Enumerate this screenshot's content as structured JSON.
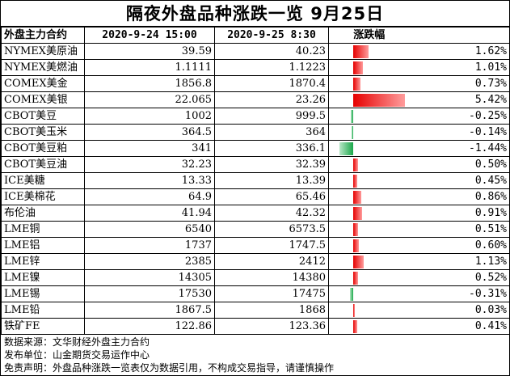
{
  "title": "隔夜外盘品种涨跌一览 9月25日",
  "chart_data": {
    "type": "table",
    "columns": [
      "外盘主力合约",
      "2020-9-24 15:00",
      "2020-9-25 8:30",
      "涨跌幅"
    ],
    "rows": [
      {
        "name": "NYMEX美原油",
        "prev": "39.59",
        "curr": "40.23",
        "change": 1.62,
        "change_text": "1.62%"
      },
      {
        "name": "NYMEX美燃油",
        "prev": "1.1111",
        "curr": "1.1223",
        "change": 1.01,
        "change_text": "1.01%"
      },
      {
        "name": "COMEX美金",
        "prev": "1856.8",
        "curr": "1870.4",
        "change": 0.73,
        "change_text": "0.73%"
      },
      {
        "name": "COMEX美银",
        "prev": "22.065",
        "curr": "23.26",
        "change": 5.42,
        "change_text": "5.42%"
      },
      {
        "name": "CBOT美豆",
        "prev": "1002",
        "curr": "999.5",
        "change": -0.25,
        "change_text": "-0.25%"
      },
      {
        "name": "CBOT美玉米",
        "prev": "364.5",
        "curr": "364",
        "change": -0.14,
        "change_text": "-0.14%"
      },
      {
        "name": "CBOT美豆粕",
        "prev": "341",
        "curr": "336.1",
        "change": -1.44,
        "change_text": "-1.44%"
      },
      {
        "name": "CBOT美豆油",
        "prev": "32.23",
        "curr": "32.39",
        "change": 0.5,
        "change_text": "0.50%"
      },
      {
        "name": "ICE美糖",
        "prev": "13.33",
        "curr": "13.39",
        "change": 0.45,
        "change_text": "0.45%"
      },
      {
        "name": "ICE美棉花",
        "prev": "64.9",
        "curr": "65.46",
        "change": 0.86,
        "change_text": "0.86%"
      },
      {
        "name": "布伦油",
        "prev": "41.94",
        "curr": "42.32",
        "change": 0.91,
        "change_text": "0.91%"
      },
      {
        "name": "LME铜",
        "prev": "6540",
        "curr": "6573.5",
        "change": 0.51,
        "change_text": "0.51%"
      },
      {
        "name": "LME铝",
        "prev": "1737",
        "curr": "1747.5",
        "change": 0.6,
        "change_text": "0.60%"
      },
      {
        "name": "LME锌",
        "prev": "2385",
        "curr": "2412",
        "change": 1.13,
        "change_text": "1.13%"
      },
      {
        "name": "LME镍",
        "prev": "14305",
        "curr": "14380",
        "change": 0.52,
        "change_text": "0.52%"
      },
      {
        "name": "LME锡",
        "prev": "17530",
        "curr": "17475",
        "change": -0.31,
        "change_text": "-0.31%"
      },
      {
        "name": "LME铅",
        "prev": "1867.5",
        "curr": "1868",
        "change": 0.03,
        "change_text": "0.03%"
      },
      {
        "name": "铁矿FE",
        "prev": "122.86",
        "curr": "123.36",
        "change": 0.41,
        "change_text": "0.41%"
      }
    ],
    "bar_colors": {
      "positive": "#e60000",
      "negative": "#1aa84a"
    }
  },
  "notes": {
    "source": "数据来源：文华财经外盘主力合约",
    "publisher": "发布单位：山金期货交易运作中心",
    "disclaimer": "免责声明：外盘品种涨跌一览表仅为数据引用，不构成交易指导，请谨慎操作"
  }
}
